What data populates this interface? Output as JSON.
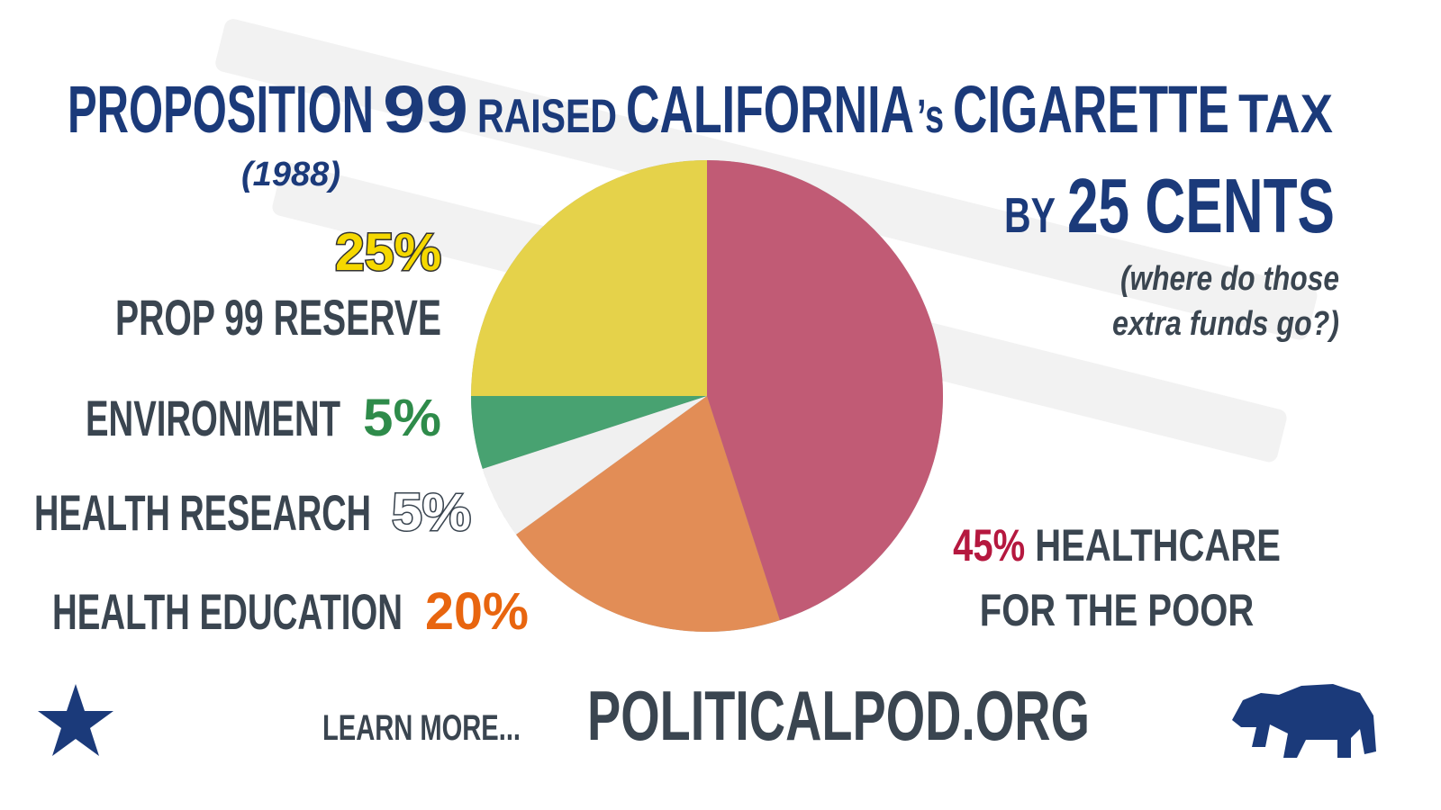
{
  "chart_data": {
    "type": "pie",
    "title_parts": [
      "PROPOSITION",
      "99",
      "RAISED",
      "CALIFORNIA",
      "’s",
      "CIGARETTE",
      "TAX",
      "BY",
      "25 CENTS"
    ],
    "year_note": "(1988)",
    "subtitle": [
      "(where do those",
      "extra funds go?)"
    ],
    "categories": [
      "PROP 99 RESERVE",
      "ENVIRONMENT",
      "HEALTH RESEARCH",
      "HEALTH EDUCATION",
      "HEALTHCARE FOR THE POOR"
    ],
    "values": [
      25,
      5,
      5,
      20,
      45
    ],
    "value_labels": [
      "25%",
      "5%",
      "5%",
      "20%",
      "45%"
    ],
    "colors": [
      "#f2dc3c",
      "#3aa36a",
      "#ffffff",
      "#ef8b4a",
      "#c8506e"
    ],
    "footer": {
      "prompt": "LEARN MORE...",
      "site": "POLITICALPOD.ORG"
    }
  }
}
